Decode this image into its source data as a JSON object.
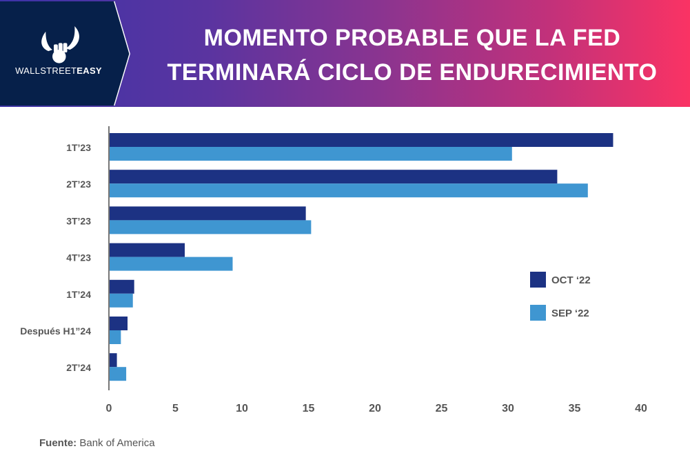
{
  "header": {
    "brand_light": "WALLSTREET",
    "brand_bold": "EASY",
    "title_line1": "MOMENTO PROBABLE QUE LA FED",
    "title_line2": "TERMINARÁ CICLO DE ENDURECIMIENTO"
  },
  "footer": {
    "source_label": "Fuente:",
    "source_value": "Bank of America"
  },
  "colors": {
    "oct": "#1c3283",
    "sep": "#3f96d1",
    "header_dark": "#06204a"
  },
  "chart_data": {
    "type": "bar",
    "orientation": "horizontal",
    "title": "MOMENTO PROBABLE QUE LA FED TERMINARÁ CICLO DE ENDURECIMIENTO",
    "categories": [
      "1T’23",
      "2T’23",
      "3T’23",
      "4T’23",
      "1T’24",
      "Después H1”24",
      "2T’24"
    ],
    "series": [
      {
        "name": "OCT ‘22",
        "values": [
          37.9,
          33.7,
          14.8,
          5.7,
          1.9,
          1.4,
          0.6
        ]
      },
      {
        "name": "SEP ‘22",
        "values": [
          30.3,
          36.0,
          15.2,
          9.3,
          1.8,
          0.9,
          1.3
        ]
      }
    ],
    "xlabel": "",
    "ylabel": "",
    "xlim": [
      0,
      40
    ],
    "xticks": [
      "0",
      "5",
      "10",
      "15",
      "20",
      "25",
      "30",
      "35",
      "40"
    ],
    "grid": false,
    "legend_position": "right"
  }
}
